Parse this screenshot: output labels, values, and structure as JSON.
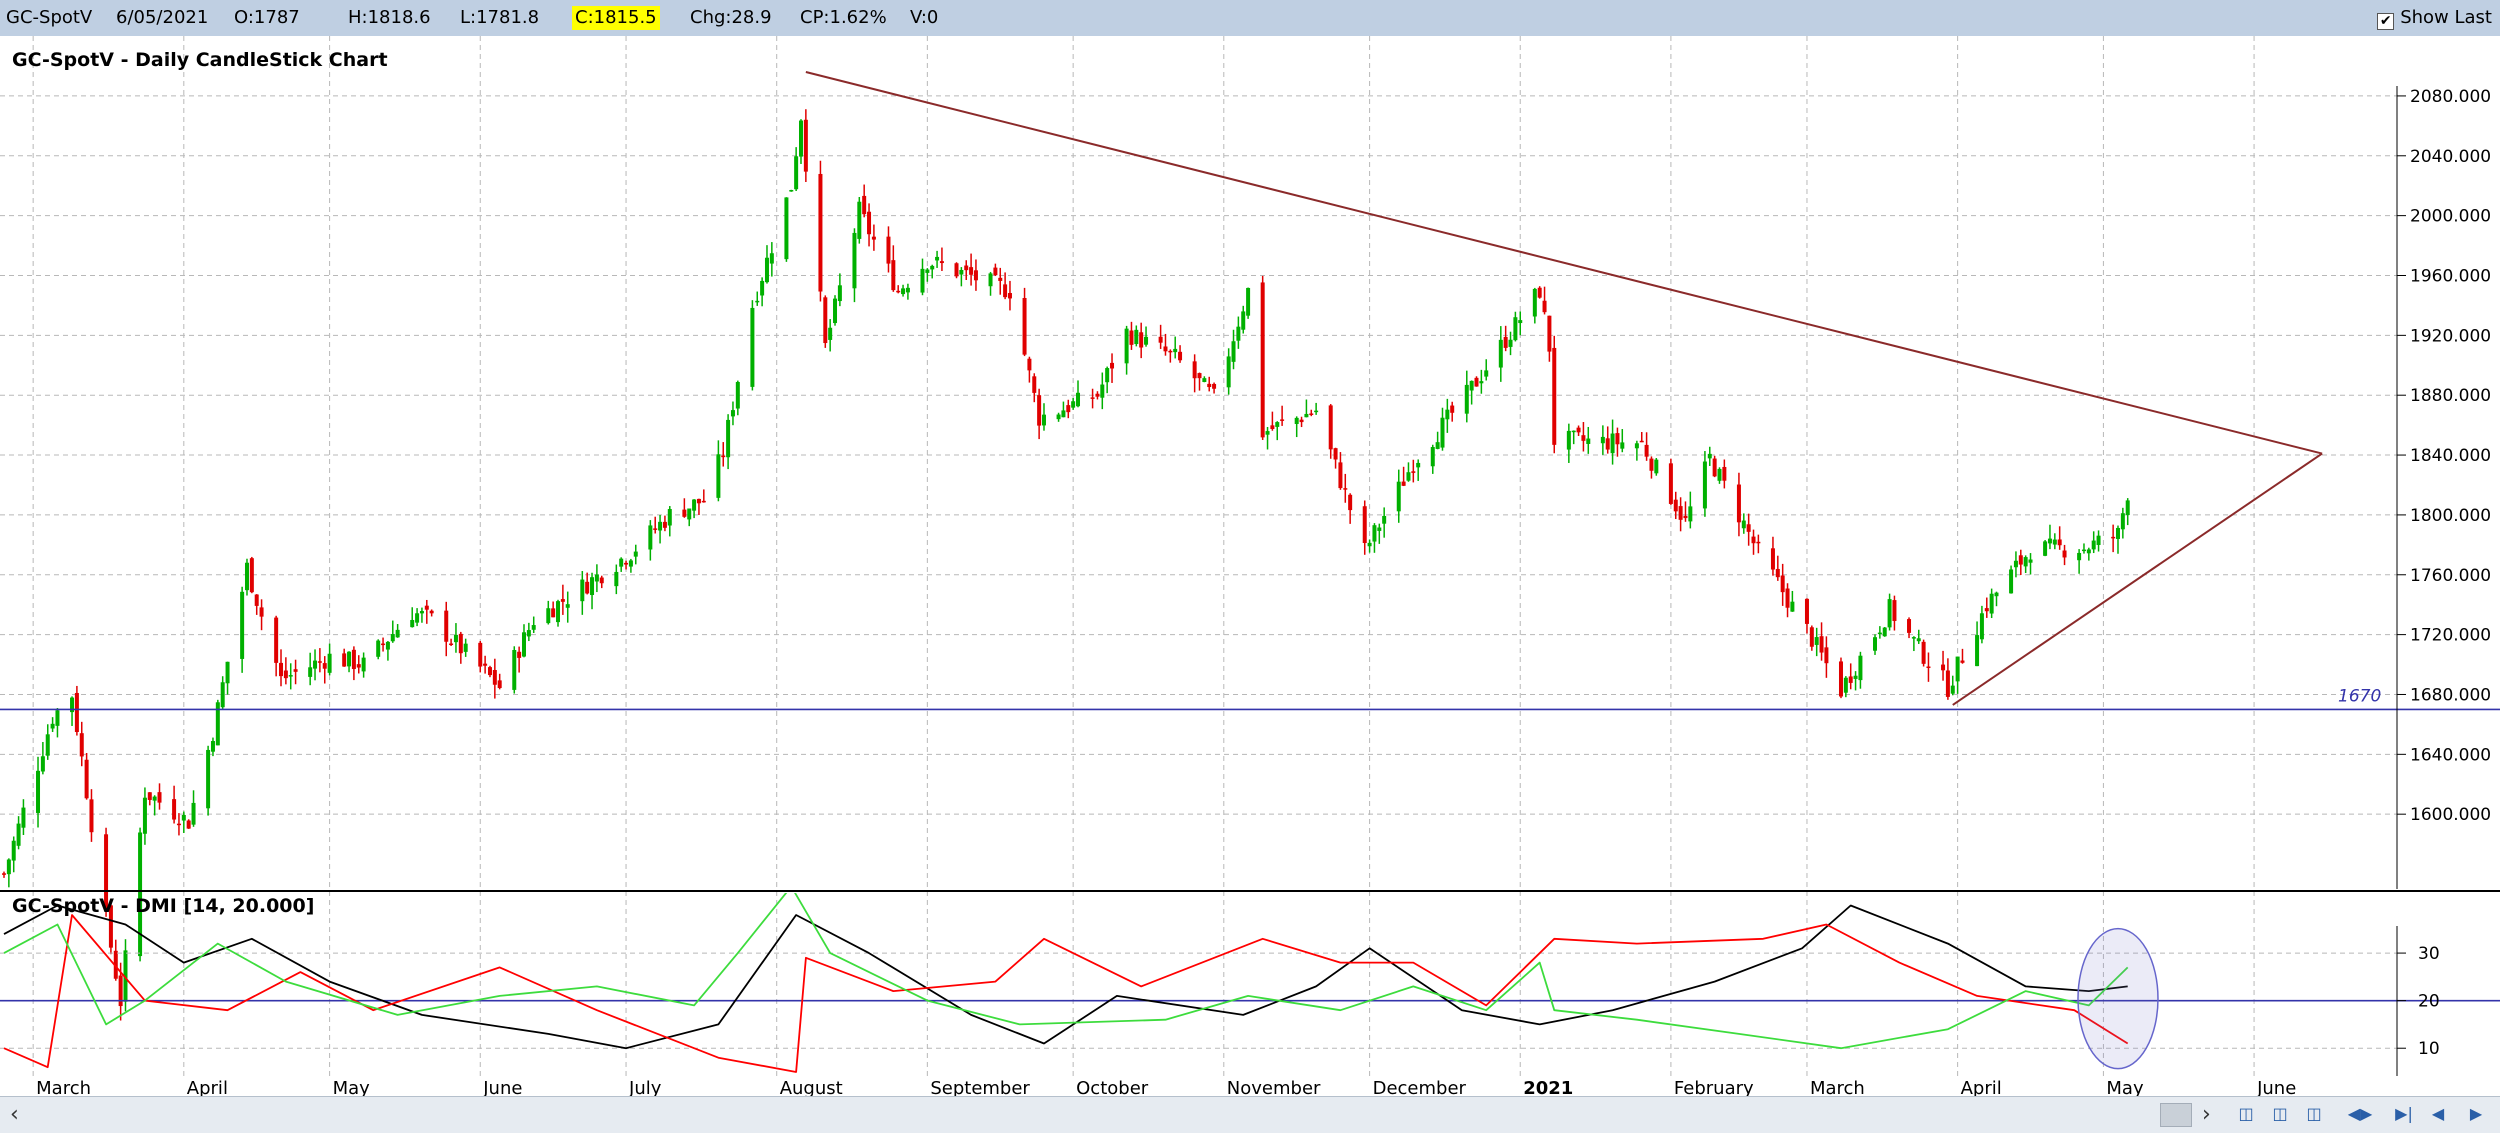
{
  "header": {
    "symbol": "GC-SpotV",
    "date": "6/05/2021",
    "open": "O:1787",
    "high": "H:1818.6",
    "low": "L:1781.8",
    "close": "C:1815.5",
    "change": "Chg:28.9",
    "change_pct": "CP:1.62%",
    "volume": "V:0",
    "show_last_label": "Show Last",
    "show_last_checked": "✔"
  },
  "footer": {
    "scroll_left": "‹",
    "scroll_right": "›",
    "nav_icons": [
      "zoom-in-icon",
      "zoom-out-icon",
      "fit-icon",
      "expand-icon",
      "first-icon",
      "prev-icon",
      "next-icon"
    ]
  },
  "chart_data": [
    {
      "type": "candlestick",
      "title": "GC-SpotV - Daily CandleStick Chart",
      "ylim": [
        1550,
        2100
      ],
      "yticks": [
        "1600.000",
        "1640.000",
        "1680.000",
        "1720.000",
        "1760.000",
        "1800.000",
        "1840.000",
        "1880.000",
        "1920.000",
        "1960.000",
        "2000.000",
        "2040.000",
        "2080.000"
      ],
      "x_months": [
        "March",
        "April",
        "May",
        "June",
        "July",
        "August",
        "September",
        "October",
        "November",
        "December",
        "2021",
        "February",
        "March",
        "April",
        "May",
        "June"
      ],
      "x_months_bold": "2021",
      "date_range": [
        "2020-02-24",
        "2021-06-30"
      ],
      "month_dates": [
        "2020-03-01",
        "2020-04-01",
        "2020-05-01",
        "2020-06-01",
        "2020-07-01",
        "2020-08-01",
        "2020-09-01",
        "2020-10-01",
        "2020-11-01",
        "2020-12-01",
        "2021-01-01",
        "2021-02-01",
        "2021-03-01",
        "2021-04-01",
        "2021-05-01",
        "2021-06-01"
      ],
      "grid": true,
      "colors": {
        "up": "#00b000",
        "down": "#e00000",
        "neutral": "#0000cc"
      },
      "close_anchors": [
        [
          "2020-02-24",
          1560
        ],
        [
          "2020-03-05",
          1665
        ],
        [
          "2020-03-09",
          1680
        ],
        [
          "2020-03-16",
          1530
        ],
        [
          "2020-03-19",
          1475
        ],
        [
          "2020-03-24",
          1615
        ],
        [
          "2020-04-02",
          1595
        ],
        [
          "2020-04-07",
          1655
        ],
        [
          "2020-04-14",
          1765
        ],
        [
          "2020-04-21",
          1690
        ],
        [
          "2020-05-01",
          1705
        ],
        [
          "2020-05-08",
          1700
        ],
        [
          "2020-05-18",
          1735
        ],
        [
          "2020-05-22",
          1730
        ],
        [
          "2020-06-05",
          1685
        ],
        [
          "2020-06-12",
          1730
        ],
        [
          "2020-06-19",
          1745
        ],
        [
          "2020-07-02",
          1775
        ],
        [
          "2020-07-10",
          1800
        ],
        [
          "2020-07-17",
          1810
        ],
        [
          "2020-07-21",
          1842
        ],
        [
          "2020-07-27",
          1940
        ],
        [
          "2020-08-04",
          2020
        ],
        [
          "2020-08-06",
          2067
        ],
        [
          "2020-08-11",
          1912
        ],
        [
          "2020-08-18",
          2003
        ],
        [
          "2020-08-26",
          1950
        ],
        [
          "2020-09-01",
          1970
        ],
        [
          "2020-09-18",
          1950
        ],
        [
          "2020-09-24",
          1865
        ],
        [
          "2020-10-06",
          1880
        ],
        [
          "2020-10-12",
          1922
        ],
        [
          "2020-10-22",
          1905
        ],
        [
          "2020-10-30",
          1878
        ],
        [
          "2020-11-06",
          1950
        ],
        [
          "2020-11-09",
          1855
        ],
        [
          "2020-11-20",
          1870
        ],
        [
          "2020-11-30",
          1776
        ],
        [
          "2020-12-10",
          1835
        ],
        [
          "2020-12-21",
          1880
        ],
        [
          "2021-01-05",
          1950
        ],
        [
          "2021-01-07",
          1912
        ],
        [
          "2021-01-08",
          1850
        ],
        [
          "2021-01-26",
          1848
        ],
        [
          "2021-02-04",
          1795
        ],
        [
          "2021-02-09",
          1838
        ],
        [
          "2021-02-19",
          1775
        ],
        [
          "2021-03-01",
          1723
        ],
        [
          "2021-03-08",
          1683
        ],
        [
          "2021-03-18",
          1737
        ],
        [
          "2021-03-30",
          1685
        ],
        [
          "2021-04-07",
          1740
        ],
        [
          "2021-04-16",
          1777
        ],
        [
          "2021-04-27",
          1778
        ],
        [
          "2021-05-04",
          1787
        ],
        [
          "2021-05-06",
          1815.5
        ]
      ],
      "horizontal_line": {
        "value": 1670,
        "label": "1670",
        "color": "#3333aa"
      },
      "trendlines": [
        {
          "from": [
            "2020-08-07",
            2096
          ],
          "to": [
            "2021-06-15",
            1841
          ],
          "color": "#8b2a2a"
        },
        {
          "from": [
            "2021-01-06",
            1962
          ],
          "to": [
            "2021-01-06",
            1962
          ],
          "color": "#8b2a2a"
        },
        {
          "from": [
            "2021-03-31",
            1673
          ],
          "to": [
            "2021-06-15",
            1841
          ],
          "color": "#8b2a2a"
        }
      ]
    },
    {
      "type": "line",
      "title": "GC-SpotV - DMI [14, 20.000]",
      "ylim": [
        5,
        42
      ],
      "yticks": [
        "10",
        "20",
        "30"
      ],
      "horizontal_line": {
        "value": 20,
        "color": "#3333aa"
      },
      "series": [
        {
          "color": "#000000",
          "points": [
            [
              "2020-02-24",
              34
            ],
            [
              "2020-03-06",
              40
            ],
            [
              "2020-03-20",
              36
            ],
            [
              "2020-04-01",
              28
            ],
            [
              "2020-04-15",
              33
            ],
            [
              "2020-05-01",
              24
            ],
            [
              "2020-05-20",
              17
            ],
            [
              "2020-06-15",
              13
            ],
            [
              "2020-07-01",
              10
            ],
            [
              "2020-07-20",
              15
            ],
            [
              "2020-08-05",
              38
            ],
            [
              "2020-08-20",
              30
            ],
            [
              "2020-09-10",
              17
            ],
            [
              "2020-09-25",
              11
            ],
            [
              "2020-10-10",
              21
            ],
            [
              "2020-11-05",
              17
            ],
            [
              "2020-11-20",
              23
            ],
            [
              "2020-12-01",
              31
            ],
            [
              "2020-12-20",
              18
            ],
            [
              "2021-01-05",
              15
            ],
            [
              "2021-01-20",
              18
            ],
            [
              "2021-02-10",
              24
            ],
            [
              "2021-02-28",
              31
            ],
            [
              "2021-03-10",
              40
            ],
            [
              "2021-03-30",
              32
            ],
            [
              "2021-04-15",
              23
            ],
            [
              "2021-04-28",
              22
            ],
            [
              "2021-05-06",
              23
            ]
          ]
        },
        {
          "color": "#ff0000",
          "points": [
            [
              "2020-02-24",
              10
            ],
            [
              "2020-03-04",
              6
            ],
            [
              "2020-03-09",
              38
            ],
            [
              "2020-03-24",
              20
            ],
            [
              "2020-04-10",
              18
            ],
            [
              "2020-04-25",
              26
            ],
            [
              "2020-05-10",
              18
            ],
            [
              "2020-06-05",
              27
            ],
            [
              "2020-06-25",
              18
            ],
            [
              "2020-07-20",
              8
            ],
            [
              "2020-08-05",
              5
            ],
            [
              "2020-08-07",
              29
            ],
            [
              "2020-08-25",
              22
            ],
            [
              "2020-09-15",
              24
            ],
            [
              "2020-09-25",
              33
            ],
            [
              "2020-10-15",
              23
            ],
            [
              "2020-11-09",
              33
            ],
            [
              "2020-11-25",
              28
            ],
            [
              "2020-12-10",
              28
            ],
            [
              "2020-12-25",
              19
            ],
            [
              "2021-01-08",
              33
            ],
            [
              "2021-01-25",
              32
            ],
            [
              "2021-02-20",
              33
            ],
            [
              "2021-03-05",
              36
            ],
            [
              "2021-03-20",
              28
            ],
            [
              "2021-04-05",
              21
            ],
            [
              "2021-04-25",
              18
            ],
            [
              "2021-05-06",
              11
            ]
          ]
        },
        {
          "color": "#3ddc3d",
          "points": [
            [
              "2020-02-24",
              30
            ],
            [
              "2020-03-06",
              36
            ],
            [
              "2020-03-16",
              15
            ],
            [
              "2020-03-24",
              20
            ],
            [
              "2020-04-08",
              32
            ],
            [
              "2020-04-22",
              24
            ],
            [
              "2020-05-15",
              17
            ],
            [
              "2020-06-05",
              21
            ],
            [
              "2020-06-25",
              23
            ],
            [
              "2020-07-15",
              19
            ],
            [
              "2020-07-24",
              30
            ],
            [
              "2020-08-04",
              44
            ],
            [
              "2020-08-12",
              30
            ],
            [
              "2020-09-01",
              20
            ],
            [
              "2020-09-20",
              15
            ],
            [
              "2020-10-20",
              16
            ],
            [
              "2020-11-06",
              21
            ],
            [
              "2020-11-25",
              18
            ],
            [
              "2020-12-10",
              23
            ],
            [
              "2020-12-25",
              18
            ],
            [
              "2021-01-05",
              28
            ],
            [
              "2021-01-08",
              18
            ],
            [
              "2021-01-25",
              16
            ],
            [
              "2021-02-15",
              13
            ],
            [
              "2021-03-08",
              10
            ],
            [
              "2021-03-30",
              14
            ],
            [
              "2021-04-15",
              22
            ],
            [
              "2021-04-28",
              19
            ],
            [
              "2021-05-06",
              27
            ]
          ]
        }
      ],
      "highlight_ellipse": {
        "x": "2021-05-04",
        "y": 20,
        "color": "#6666cc"
      }
    }
  ]
}
